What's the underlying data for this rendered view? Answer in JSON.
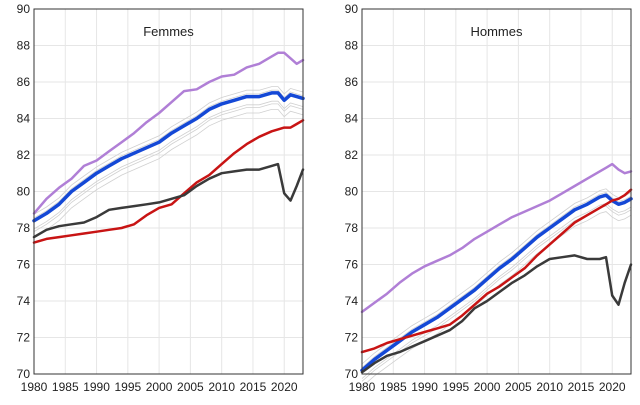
{
  "chart_data": {
    "type": "line",
    "ylim": [
      70,
      90
    ],
    "xlim": [
      1980,
      2023
    ],
    "y_ticks": [
      "70",
      "72",
      "74",
      "76",
      "78",
      "80",
      "82",
      "84",
      "86",
      "88",
      "90"
    ],
    "x_ticks": [
      "1980",
      "1985",
      "1990",
      "1995",
      "2000",
      "2005",
      "2010",
      "2015",
      "2020"
    ],
    "grid": true,
    "colors": {
      "purple": "#b07fd6",
      "blue": "#1448d6",
      "red": "#c81414",
      "dark": "#3a3a3a",
      "grey": "#d0d0d0"
    },
    "panels": [
      {
        "title": "Femmes",
        "series": [
          {
            "color_key": "purple",
            "width": 2.5,
            "x": [
              1980,
              1982,
              1984,
              1986,
              1988,
              1990,
              1992,
              1994,
              1996,
              1998,
              2000,
              2002,
              2004,
              2006,
              2008,
              2010,
              2012,
              2014,
              2016,
              2018,
              2019,
              2020,
              2021,
              2022,
              2023
            ],
            "y": [
              78.8,
              79.6,
              80.2,
              80.7,
              81.4,
              81.7,
              82.2,
              82.7,
              83.2,
              83.8,
              84.3,
              84.9,
              85.5,
              85.6,
              86.0,
              86.3,
              86.4,
              86.8,
              87.0,
              87.4,
              87.6,
              87.6,
              87.3,
              87.0,
              87.2
            ]
          },
          {
            "color_key": "blue",
            "width": 3.5,
            "x": [
              1980,
              1982,
              1984,
              1986,
              1988,
              1990,
              1992,
              1994,
              1996,
              1998,
              2000,
              2002,
              2004,
              2006,
              2008,
              2010,
              2012,
              2014,
              2016,
              2018,
              2019,
              2020,
              2021,
              2022,
              2023
            ],
            "y": [
              78.4,
              78.8,
              79.3,
              80.0,
              80.5,
              81.0,
              81.4,
              81.8,
              82.1,
              82.4,
              82.7,
              83.2,
              83.6,
              84.0,
              84.5,
              84.8,
              85.0,
              85.2,
              85.2,
              85.4,
              85.4,
              85.0,
              85.3,
              85.2,
              85.1
            ]
          },
          {
            "color_key": "red",
            "width": 2.5,
            "x": [
              1980,
              1982,
              1984,
              1986,
              1988,
              1990,
              1992,
              1994,
              1996,
              1998,
              2000,
              2002,
              2004,
              2006,
              2008,
              2010,
              2012,
              2014,
              2016,
              2018,
              2019,
              2020,
              2021,
              2022,
              2023
            ],
            "y": [
              77.2,
              77.4,
              77.5,
              77.6,
              77.7,
              77.8,
              77.9,
              78.0,
              78.2,
              78.7,
              79.1,
              79.3,
              79.9,
              80.5,
              80.9,
              81.5,
              82.1,
              82.6,
              83.0,
              83.3,
              83.4,
              83.5,
              83.5,
              83.7,
              83.9
            ]
          },
          {
            "color_key": "dark",
            "width": 2.5,
            "x": [
              1980,
              1982,
              1984,
              1986,
              1988,
              1990,
              1992,
              1994,
              1996,
              1998,
              2000,
              2002,
              2004,
              2006,
              2008,
              2010,
              2012,
              2014,
              2016,
              2018,
              2019,
              2020,
              2021,
              2022,
              2023
            ],
            "y": [
              77.5,
              77.9,
              78.1,
              78.2,
              78.3,
              78.6,
              79.0,
              79.1,
              79.2,
              79.3,
              79.4,
              79.6,
              79.8,
              80.3,
              80.7,
              81.0,
              81.1,
              81.2,
              81.2,
              81.4,
              81.5,
              79.9,
              79.5,
              80.3,
              81.2
            ]
          }
        ]
      },
      {
        "title": "Hommes",
        "series": [
          {
            "color_key": "purple",
            "width": 2.5,
            "x": [
              1980,
              1982,
              1984,
              1986,
              1988,
              1990,
              1992,
              1994,
              1996,
              1998,
              2000,
              2002,
              2004,
              2006,
              2008,
              2010,
              2012,
              2014,
              2016,
              2018,
              2019,
              2020,
              2021,
              2022,
              2023
            ],
            "y": [
              73.4,
              73.9,
              74.4,
              75.0,
              75.5,
              75.9,
              76.2,
              76.5,
              76.9,
              77.4,
              77.8,
              78.2,
              78.6,
              78.9,
              79.2,
              79.5,
              79.9,
              80.3,
              80.7,
              81.1,
              81.3,
              81.5,
              81.2,
              81.0,
              81.1
            ]
          },
          {
            "color_key": "blue",
            "width": 3.5,
            "x": [
              1980,
              1982,
              1984,
              1986,
              1988,
              1990,
              1992,
              1994,
              1996,
              1998,
              2000,
              2002,
              2004,
              2006,
              2008,
              2010,
              2012,
              2014,
              2016,
              2018,
              2019,
              2020,
              2021,
              2022,
              2023
            ],
            "y": [
              70.2,
              70.8,
              71.3,
              71.8,
              72.3,
              72.7,
              73.1,
              73.6,
              74.1,
              74.6,
              75.2,
              75.8,
              76.3,
              76.9,
              77.5,
              78.0,
              78.5,
              79.0,
              79.3,
              79.7,
              79.8,
              79.5,
              79.3,
              79.4,
              79.6
            ]
          },
          {
            "color_key": "red",
            "width": 2.5,
            "x": [
              1980,
              1982,
              1984,
              1986,
              1988,
              1990,
              1992,
              1994,
              1996,
              1998,
              2000,
              2002,
              2004,
              2006,
              2008,
              2010,
              2012,
              2014,
              2016,
              2018,
              2019,
              2020,
              2021,
              2022,
              2023
            ],
            "y": [
              71.2,
              71.4,
              71.7,
              71.9,
              72.1,
              72.3,
              72.5,
              72.7,
              73.2,
              73.8,
              74.4,
              74.8,
              75.3,
              75.8,
              76.5,
              77.1,
              77.7,
              78.3,
              78.7,
              79.1,
              79.3,
              79.5,
              79.6,
              79.8,
              80.1
            ]
          },
          {
            "color_key": "dark",
            "width": 2.5,
            "x": [
              1980,
              1982,
              1984,
              1986,
              1988,
              1990,
              1992,
              1994,
              1996,
              1998,
              2000,
              2002,
              2004,
              2006,
              2008,
              2010,
              2012,
              2014,
              2016,
              2018,
              2019,
              2020,
              2021,
              2022,
              2023
            ],
            "y": [
              70.1,
              70.6,
              71.0,
              71.2,
              71.5,
              71.8,
              72.1,
              72.4,
              72.9,
              73.6,
              74.0,
              74.5,
              75.0,
              75.4,
              75.9,
              76.3,
              76.4,
              76.5,
              76.3,
              76.3,
              76.4,
              74.3,
              73.8,
              75.0,
              76.0
            ]
          }
        ]
      }
    ]
  }
}
